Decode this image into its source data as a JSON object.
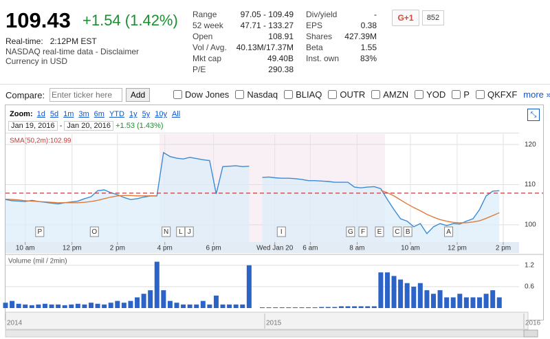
{
  "quote": {
    "price": "109.43",
    "change": "+1.54 (1.42%)",
    "realtime_label": "Real-time:",
    "time": "2:12PM EST",
    "disclaimer": "NASDAQ real-time data - Disclaimer",
    "currency": "Currency in USD"
  },
  "stats_left": [
    [
      "Range",
      "97.05 - 109.49"
    ],
    [
      "52 week",
      "47.71 - 133.27"
    ],
    [
      "Open",
      "108.91"
    ],
    [
      "Vol / Avg.",
      "40.13M/17.37M"
    ],
    [
      "Mkt cap",
      "49.40B"
    ],
    [
      "P/E",
      "290.38"
    ]
  ],
  "stats_right": [
    [
      "Div/yield",
      "-"
    ],
    [
      "EPS",
      "0.38"
    ],
    [
      "Shares",
      "427.39M"
    ],
    [
      "Beta",
      "1.55"
    ],
    [
      "Inst. own",
      "83%"
    ]
  ],
  "social": {
    "button": "G+1",
    "count": "852"
  },
  "compare": {
    "label": "Compare:",
    "placeholder": "Enter ticker here",
    "button": "Add",
    "tickers": [
      "Dow Jones",
      "Nasdaq",
      "BLIAQ",
      "OUTR",
      "AMZN",
      "YOD",
      "P",
      "QKFXF"
    ],
    "more": "more »"
  },
  "zoom": {
    "label": "Zoom:",
    "options": [
      "1d",
      "5d",
      "1m",
      "3m",
      "6m",
      "YTD",
      "1y",
      "5y",
      "10y",
      "All"
    ],
    "range_start": "Jan 19, 2016",
    "range_sep": "-",
    "range_end": "Jan 20, 2016",
    "range_change": "+1.53 (1.43%)"
  },
  "navigator": {
    "years": [
      "2014",
      "2015",
      "2016"
    ]
  },
  "chart_data": [
    {
      "type": "line",
      "sma_label": "SMA(50,2m):102.99",
      "x": [
        0,
        1,
        2,
        3,
        4,
        5,
        6,
        7,
        8,
        9,
        10,
        11,
        12,
        13,
        14,
        15,
        16,
        17,
        18,
        19,
        20,
        21,
        22,
        23,
        24,
        25,
        26,
        27,
        28,
        29,
        30,
        31,
        32,
        33,
        34,
        35,
        36,
        37,
        38,
        39,
        40,
        41,
        42,
        43,
        44,
        45,
        46,
        47,
        48,
        49,
        50,
        51,
        52,
        53,
        54,
        55,
        56,
        57,
        58,
        59,
        60,
        61,
        62,
        63,
        64,
        65,
        66,
        67,
        68,
        69,
        70,
        71,
        72,
        73,
        74,
        75
      ],
      "xlim": [
        0,
        78
      ],
      "xticks": [
        {
          "value": 3.0,
          "label": "10 am"
        },
        {
          "value": 10.1,
          "label": "12 pm"
        },
        {
          "value": 17.0,
          "label": "2 pm"
        },
        {
          "value": 24.2,
          "label": "4 pm"
        },
        {
          "value": 31.6,
          "label": "6 pm"
        },
        {
          "value": 40.9,
          "label": "Wed Jan 20"
        },
        {
          "value": 46.3,
          "label": "6 am"
        },
        {
          "value": 53.4,
          "label": "8 am"
        },
        {
          "value": 61.5,
          "label": "10 am"
        },
        {
          "value": 68.6,
          "label": "12 pm"
        },
        {
          "value": 75.6,
          "label": "2 pm"
        }
      ],
      "ylim": [
        95.7,
        122.6
      ],
      "yticks": [
        100,
        110,
        120
      ],
      "reference_line": 107.89,
      "reference_color": "#cc3333",
      "series": [
        {
          "color": "#3a8ad6",
          "values": [
            106.3,
            106.0,
            105.9,
            105.8,
            106.1,
            105.8,
            105.6,
            105.4,
            105.2,
            105.5,
            105.7,
            105.9,
            106.5,
            107.0,
            108.5,
            108.7,
            108.0,
            107.5,
            106.8,
            106.3,
            106.5,
            106.9,
            107.2,
            107.2,
            118.0,
            117.0,
            116.6,
            116.4,
            116.8,
            116.5,
            116.2,
            116.0,
            107.7,
            114.5,
            114.6,
            114.7,
            114.5,
            114.6,
            null,
            111.8,
            111.9,
            111.7,
            111.6,
            111.6,
            111.5,
            111.3,
            111.0,
            111.0,
            110.9,
            110.8,
            110.6,
            110.6,
            110.6,
            109.4,
            109.2,
            109.4,
            109.5,
            109.0,
            106.3,
            103.8,
            101.5,
            100.9,
            99.5,
            100.3,
            97.8,
            99.5,
            100.3,
            99.8,
            100.3,
            100.2,
            100.9,
            101.5,
            103.8,
            107.2,
            108.4,
            108.5
          ]
        },
        {
          "color": "#e07a3a",
          "values": [
            106.4,
            106.3,
            106.2,
            106.0,
            105.9,
            105.8,
            105.7,
            105.6,
            105.5,
            105.5,
            105.5,
            105.5,
            105.6,
            105.8,
            106.1,
            106.5,
            106.9,
            107.2,
            107.3,
            107.3,
            107.2,
            107.2,
            107.2,
            107.2,
            null,
            null,
            null,
            null,
            null,
            null,
            null,
            null,
            null,
            null,
            null,
            null,
            null,
            null,
            null,
            null,
            null,
            null,
            null,
            null,
            null,
            null,
            null,
            null,
            null,
            null,
            null,
            null,
            null,
            null,
            null,
            null,
            null,
            108.6,
            108.0,
            107.2,
            106.2,
            105.2,
            104.3,
            103.5,
            102.6,
            101.9,
            101.3,
            100.9,
            100.6,
            100.5,
            100.5,
            100.7,
            101.0,
            101.6,
            102.3,
            103.0
          ]
        }
      ],
      "flags": [
        {
          "label": "P",
          "x": 5.2
        },
        {
          "label": "O",
          "x": 13.5
        },
        {
          "label": "N",
          "x": 24.4
        },
        {
          "label": "L",
          "x": 26.6
        },
        {
          "label": "J",
          "x": 27.9
        },
        {
          "label": "I",
          "x": 41.9
        },
        {
          "label": "G",
          "x": 52.4
        },
        {
          "label": "F",
          "x": 54.3
        },
        {
          "label": "E",
          "x": 56.8
        },
        {
          "label": "C",
          "x": 59.5
        },
        {
          "label": "B",
          "x": 61.1
        },
        {
          "label": "A",
          "x": 67.3
        }
      ]
    },
    {
      "type": "bar",
      "title": "Volume (mil / 2min)",
      "color": "#2b63c6",
      "ylim": [
        0,
        1.35
      ],
      "yticks": [
        0.6,
        1.2
      ],
      "values": [
        0.15,
        0.2,
        0.12,
        0.1,
        0.08,
        0.1,
        0.12,
        0.1,
        0.1,
        0.08,
        0.1,
        0.12,
        0.1,
        0.15,
        0.12,
        0.1,
        0.15,
        0.2,
        0.15,
        0.2,
        0.3,
        0.4,
        0.5,
        1.3,
        0.5,
        0.2,
        0.15,
        0.1,
        0.1,
        0.1,
        0.2,
        0.1,
        0.35,
        0.1,
        0.1,
        0.1,
        0.1,
        1.2,
        0,
        0.02,
        0.02,
        0.02,
        0.02,
        0.02,
        0.02,
        0.02,
        0.02,
        0.02,
        0.03,
        0.03,
        0.03,
        0.05,
        0.05,
        0.05,
        0.05,
        0.05,
        0.05,
        1.0,
        1.0,
        0.9,
        0.8,
        0.7,
        0.6,
        0.7,
        0.5,
        0.4,
        0.5,
        0.3,
        0.3,
        0.4,
        0.3,
        0.3,
        0.3,
        0.4,
        0.5,
        0.3
      ]
    }
  ]
}
